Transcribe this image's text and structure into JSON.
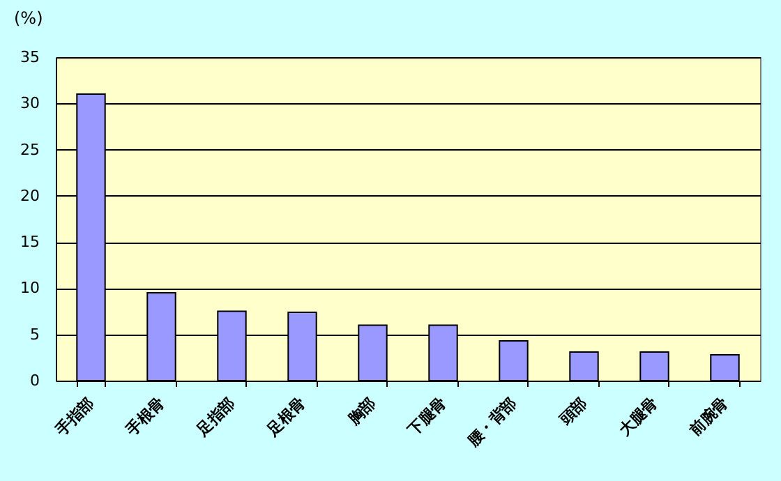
{
  "chart_data": {
    "type": "bar",
    "ylabel": "(%)",
    "categories": [
      "手指部",
      "手根骨",
      "足指部",
      "足根骨",
      "胸部",
      "下腿骨",
      "腰・背部",
      "頭部",
      "大腿骨",
      "前腕骨"
    ],
    "values": [
      31.0,
      9.5,
      7.5,
      7.4,
      6.0,
      6.0,
      4.3,
      3.1,
      3.1,
      2.8
    ],
    "color": "#9999ff",
    "ylim": [
      0,
      35
    ],
    "yticks": [
      0,
      5,
      10,
      15,
      20,
      25,
      30,
      35
    ],
    "grid": "y"
  }
}
